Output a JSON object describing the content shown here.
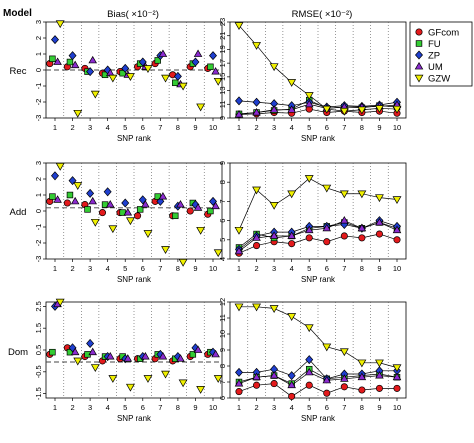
{
  "figure": {
    "model_label": "Model",
    "bias_title": "Bias( ×10⁻²)",
    "rmse_title": "RMSE( ×10⁻²)",
    "row_labels": [
      "Rec",
      "Add",
      "Dom"
    ],
    "xlabel": "SNP rank"
  },
  "legend": {
    "placement": "top-right of the Rec RMSE panel",
    "entries": [
      {
        "name": "GFcom",
        "color": "#e31a1c",
        "shape": "circle"
      },
      {
        "name": "FU",
        "color": "#33cc33",
        "shape": "square"
      },
      {
        "name": "ZP",
        "color": "#1f3fcf",
        "shape": "diamond"
      },
      {
        "name": "UM",
        "color": "#8b2bcf",
        "shape": "triangle-up"
      },
      {
        "name": "GZW",
        "color": "#f0f000",
        "shape": "triangle-down"
      }
    ]
  },
  "chart_data": [
    {
      "type": "scatter",
      "row": "Rec",
      "metric": "Bias",
      "xlabel": "SNP rank",
      "ylabel": "",
      "x": [
        1,
        2,
        3,
        4,
        5,
        6,
        7,
        8,
        9,
        10
      ],
      "ylim": [
        -3,
        3
      ],
      "yticks": [
        -3,
        -2,
        -1,
        0,
        1,
        2,
        3
      ],
      "reference_line": 0,
      "series": [
        {
          "name": "GFcom",
          "values": [
            0.4,
            0.2,
            0.1,
            -0.2,
            -0.1,
            0.2,
            0.4,
            -0.3,
            0.2,
            0.1
          ]
        },
        {
          "name": "FU",
          "values": [
            0.7,
            0.5,
            -0.1,
            -0.3,
            -0.2,
            0.4,
            0.6,
            -0.8,
            0.4,
            0.2
          ]
        },
        {
          "name": "ZP",
          "values": [
            1.9,
            0.9,
            -0.1,
            0.0,
            0.1,
            0.5,
            0.9,
            -0.4,
            0.5,
            0.9
          ]
        },
        {
          "name": "UM",
          "values": [
            0.5,
            0.3,
            0.6,
            -0.2,
            -0.3,
            0.2,
            1.0,
            -0.9,
            1.0,
            -0.1
          ]
        },
        {
          "name": "GZW",
          "values": [
            2.9,
            -2.7,
            -1.5,
            -0.5,
            -0.4,
            0.1,
            -0.5,
            -1.0,
            -2.3,
            -0.7
          ]
        }
      ]
    },
    {
      "type": "line",
      "row": "Rec",
      "metric": "RMSE",
      "xlabel": "SNP rank",
      "ylabel": "",
      "x": [
        1,
        2,
        3,
        4,
        5,
        6,
        7,
        8,
        9,
        10
      ],
      "ylim": [
        9,
        23
      ],
      "yticks": [
        9,
        11,
        13,
        15,
        17,
        19,
        21,
        23
      ],
      "series": [
        {
          "name": "GFcom",
          "values": [
            9.5,
            9.6,
            9.8,
            9.7,
            10.3,
            9.8,
            10.0,
            9.8,
            10.0,
            9.7
          ]
        },
        {
          "name": "FU",
          "values": [
            9.6,
            9.8,
            10.1,
            10.3,
            11.6,
            10.4,
            10.6,
            10.5,
            10.8,
            10.6
          ]
        },
        {
          "name": "ZP",
          "values": [
            11.5,
            11.3,
            11.1,
            10.8,
            11.3,
            10.6,
            10.8,
            10.7,
            10.9,
            11.3
          ]
        },
        {
          "name": "UM",
          "values": [
            9.5,
            9.8,
            10.2,
            10.2,
            11.0,
            10.4,
            10.6,
            10.6,
            10.7,
            10.9
          ]
        },
        {
          "name": "GZW",
          "values": [
            22.5,
            19.6,
            16.5,
            14.2,
            12.3,
            10.3,
            10.0,
            10.2,
            10.4,
            10.3
          ]
        }
      ]
    },
    {
      "type": "scatter",
      "row": "Add",
      "metric": "Bias",
      "xlabel": "SNP rank",
      "ylabel": "",
      "x": [
        1,
        2,
        3,
        4,
        5,
        6,
        7,
        8,
        9,
        10
      ],
      "ylim": [
        -3,
        3
      ],
      "yticks": [
        -3,
        -2,
        -1,
        0,
        1,
        2,
        3
      ],
      "reference_line": 0.2,
      "series": [
        {
          "name": "GFcom",
          "values": [
            0.6,
            0.5,
            0.4,
            -0.1,
            -0.1,
            -0.3,
            0.6,
            -0.3,
            0.0,
            -0.2
          ]
        },
        {
          "name": "FU",
          "values": [
            0.9,
            1.0,
            0.1,
            0.4,
            -0.1,
            0.1,
            0.9,
            -0.3,
            0.5,
            0.0
          ]
        },
        {
          "name": "ZP",
          "values": [
            2.2,
            1.9,
            1.1,
            1.2,
            0.5,
            0.7,
            0.6,
            0.3,
            0.4,
            0.6
          ]
        },
        {
          "name": "UM",
          "values": [
            0.7,
            0.6,
            0.6,
            0.4,
            -0.1,
            0.4,
            0.9,
            0.4,
            0.2,
            0.3
          ]
        },
        {
          "name": "GZW",
          "values": [
            2.8,
            1.6,
            -0.7,
            -1.1,
            -0.6,
            -1.4,
            -2.4,
            -3.2,
            -1.2,
            -2.6
          ]
        }
      ]
    },
    {
      "type": "line",
      "row": "Add",
      "metric": "RMSE",
      "xlabel": "SNP rank",
      "ylabel": "",
      "x": [
        1,
        2,
        3,
        4,
        5,
        6,
        7,
        8,
        9,
        10
      ],
      "ylim": [
        4,
        9
      ],
      "yticks": [
        4,
        5,
        6,
        7,
        8,
        9
      ],
      "series": [
        {
          "name": "GFcom",
          "values": [
            4.3,
            4.7,
            4.9,
            4.8,
            5.1,
            4.9,
            5.2,
            5.1,
            5.3,
            5.0
          ]
        },
        {
          "name": "FU",
          "values": [
            4.6,
            5.3,
            5.1,
            5.2,
            5.6,
            5.7,
            5.9,
            5.6,
            5.9,
            5.6
          ]
        },
        {
          "name": "ZP",
          "values": [
            4.5,
            5.2,
            5.4,
            5.4,
            5.7,
            5.7,
            5.8,
            5.6,
            6.0,
            5.7
          ]
        },
        {
          "name": "UM",
          "values": [
            4.4,
            5.1,
            5.2,
            5.2,
            5.5,
            5.6,
            6.0,
            5.6,
            5.9,
            5.5
          ]
        },
        {
          "name": "GZW",
          "values": [
            5.5,
            7.6,
            6.8,
            7.4,
            8.2,
            7.7,
            7.4,
            7.4,
            7.2,
            7.1
          ]
        }
      ]
    },
    {
      "type": "scatter",
      "row": "Dom",
      "metric": "Bias",
      "xlabel": "SNP rank",
      "ylabel": "",
      "x": [
        1,
        2,
        3,
        4,
        5,
        6,
        7,
        8,
        9,
        10
      ],
      "ylim": [
        -1.7,
        2.7
      ],
      "yticks": [
        -1.5,
        -0.5,
        0.5,
        1.5,
        2.5
      ],
      "reference_line": -0.05,
      "series": [
        {
          "name": "GFcom",
          "values": [
            0.3,
            0.6,
            0.2,
            0.0,
            0.1,
            0.1,
            0.1,
            0.0,
            0.2,
            0.3
          ]
        },
        {
          "name": "FU",
          "values": [
            0.4,
            0.4,
            0.3,
            0.2,
            0.2,
            0.1,
            0.3,
            0.1,
            0.3,
            0.4
          ]
        },
        {
          "name": "ZP",
          "values": [
            2.5,
            0.6,
            0.8,
            0.2,
            0.1,
            0.2,
            0.3,
            0.2,
            0.6,
            0.4
          ]
        },
        {
          "name": "UM",
          "values": [
            2.6,
            0.4,
            0.4,
            0.2,
            0.1,
            0.2,
            0.2,
            0.1,
            0.5,
            0.3
          ]
        },
        {
          "name": "GZW",
          "values": [
            2.7,
            0.0,
            -0.3,
            -0.8,
            -1.2,
            -0.8,
            -0.6,
            -1.0,
            -1.3,
            -0.8
          ]
        }
      ]
    },
    {
      "type": "line",
      "row": "Dom",
      "metric": "RMSE",
      "xlabel": "SNP rank",
      "ylabel": "",
      "x": [
        1,
        2,
        3,
        4,
        5,
        6,
        7,
        8,
        9,
        10
      ],
      "ylim": [
        6,
        12
      ],
      "yticks": [
        6,
        7,
        8,
        9,
        10,
        11,
        12
      ],
      "series": [
        {
          "name": "GFcom",
          "values": [
            6.4,
            6.8,
            6.9,
            6.1,
            6.8,
            6.3,
            6.7,
            6.5,
            6.6,
            6.6
          ]
        },
        {
          "name": "FU",
          "values": [
            7.0,
            7.3,
            7.4,
            6.9,
            7.8,
            7.2,
            7.3,
            7.4,
            7.5,
            7.3
          ]
        },
        {
          "name": "ZP",
          "values": [
            7.6,
            7.6,
            7.8,
            7.4,
            8.4,
            7.2,
            7.5,
            7.5,
            7.7,
            7.7
          ]
        },
        {
          "name": "UM",
          "values": [
            6.9,
            7.3,
            7.4,
            6.8,
            7.6,
            7.1,
            7.2,
            7.3,
            7.4,
            7.3
          ]
        },
        {
          "name": "GZW",
          "values": [
            11.7,
            11.7,
            11.6,
            11.1,
            10.4,
            9.2,
            8.9,
            8.2,
            8.2,
            7.9
          ]
        }
      ]
    }
  ]
}
